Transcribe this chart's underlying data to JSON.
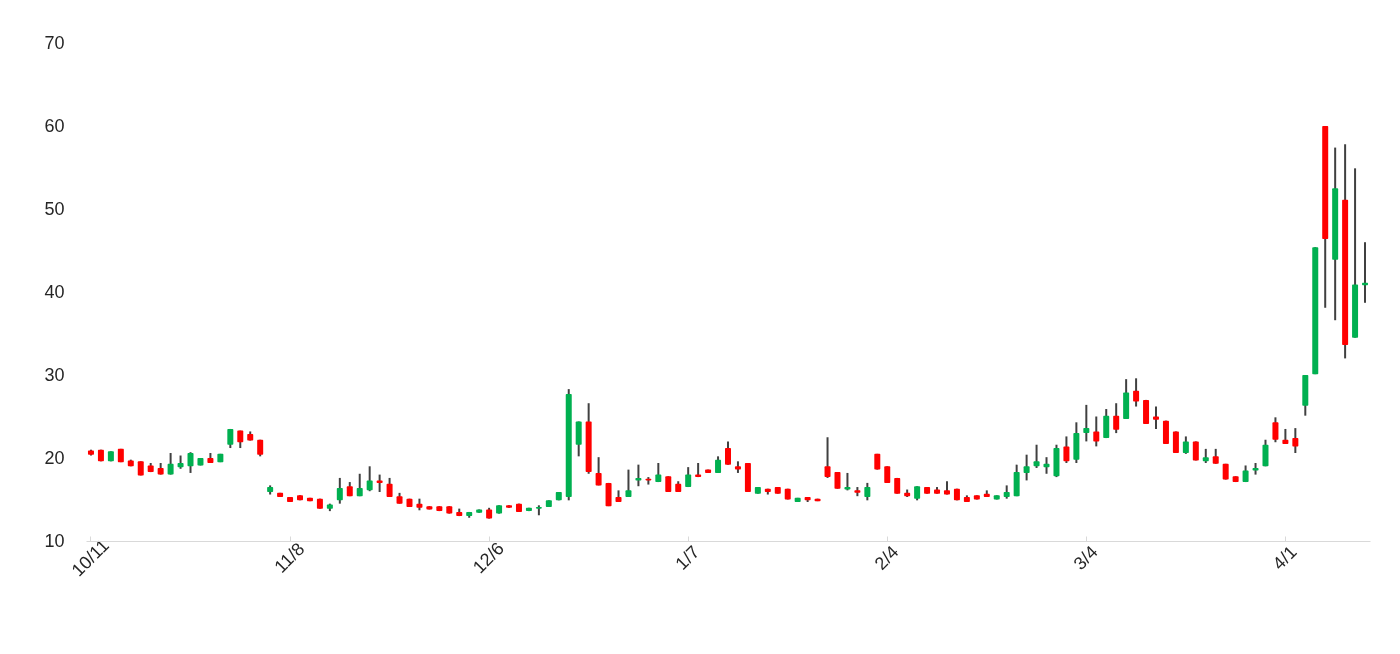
{
  "chart_data": {
    "type": "candlestick",
    "categories": [
      "10/11",
      null,
      null,
      null,
      null,
      null,
      null,
      null,
      null,
      null,
      null,
      null,
      null,
      null,
      null,
      null,
      null,
      null,
      null,
      null,
      "11/8",
      null,
      null,
      null,
      null,
      null,
      null,
      null,
      null,
      null,
      null,
      null,
      null,
      null,
      null,
      null,
      null,
      null,
      null,
      null,
      "12/6",
      null,
      null,
      null,
      null,
      null,
      null,
      null,
      null,
      null,
      null,
      null,
      null,
      null,
      null,
      null,
      null,
      null,
      null,
      null,
      "1/7",
      null,
      null,
      null,
      null,
      null,
      null,
      null,
      null,
      null,
      null,
      null,
      null,
      null,
      null,
      null,
      null,
      null,
      null,
      null,
      "2/4",
      null,
      null,
      null,
      null,
      null,
      null,
      null,
      null,
      null,
      null,
      null,
      null,
      null,
      null,
      null,
      null,
      null,
      null,
      null,
      "3/4",
      null,
      null,
      null,
      null,
      null,
      null,
      null,
      null,
      null,
      null,
      null,
      null,
      null,
      null,
      null,
      null,
      null,
      null,
      null,
      "4/1",
      null,
      null,
      null,
      null,
      null,
      null,
      null,
      null
    ],
    "ohlc": [
      [
        20.9,
        21.0,
        20.3,
        20.4
      ],
      [
        21.0,
        21.0,
        19.6,
        19.6
      ],
      [
        19.6,
        20.8,
        19.6,
        20.8
      ],
      [
        21.1,
        21.1,
        19.5,
        19.5
      ],
      [
        19.7,
        19.8,
        19.0,
        19.0
      ],
      [
        19.6,
        19.6,
        17.9,
        17.9
      ],
      [
        19.1,
        19.4,
        18.3,
        18.3
      ],
      [
        18.8,
        19.4,
        18.0,
        18.0
      ],
      [
        18.0,
        20.6,
        18.0,
        19.3
      ],
      [
        18.9,
        20.3,
        18.7,
        19.4
      ],
      [
        19.0,
        20.7,
        18.2,
        20.6
      ],
      [
        19.1,
        20.0,
        19.1,
        20.0
      ],
      [
        20.0,
        20.6,
        19.4,
        19.4
      ],
      [
        19.5,
        20.5,
        19.5,
        20.5
      ],
      [
        21.6,
        23.5,
        21.2,
        23.5
      ],
      [
        23.3,
        23.3,
        21.2,
        21.9
      ],
      [
        22.9,
        23.2,
        22.1,
        22.1
      ],
      [
        22.2,
        22.2,
        20.2,
        20.4
      ],
      [
        15.9,
        16.7,
        15.6,
        16.5
      ],
      [
        15.8,
        15.8,
        15.3,
        15.3
      ],
      [
        15.3,
        15.3,
        14.7,
        14.7
      ],
      [
        15.5,
        15.5,
        14.9,
        14.9
      ],
      [
        15.2,
        15.2,
        14.8,
        14.8
      ],
      [
        15.1,
        15.1,
        13.9,
        13.9
      ],
      [
        13.9,
        14.5,
        13.6,
        14.4
      ],
      [
        14.9,
        17.6,
        14.5,
        16.4
      ],
      [
        16.6,
        17.1,
        15.4,
        15.4
      ],
      [
        15.4,
        18.1,
        15.4,
        16.4
      ],
      [
        16.1,
        19.0,
        16.0,
        17.3
      ],
      [
        17.3,
        18.0,
        15.9,
        17.0
      ],
      [
        16.9,
        17.6,
        15.3,
        15.3
      ],
      [
        15.4,
        15.8,
        14.5,
        14.5
      ],
      [
        15.1,
        15.1,
        14.1,
        14.1
      ],
      [
        14.5,
        15.1,
        13.7,
        14.0
      ],
      [
        14.2,
        14.2,
        13.8,
        13.8
      ],
      [
        14.2,
        14.2,
        13.6,
        13.6
      ],
      [
        14.2,
        14.2,
        13.3,
        13.3
      ],
      [
        13.5,
        13.9,
        13.0,
        13.0
      ],
      [
        13.0,
        13.5,
        12.8,
        13.5
      ],
      [
        13.4,
        13.8,
        13.4,
        13.8
      ],
      [
        13.8,
        14.0,
        12.7,
        12.7
      ],
      [
        13.3,
        14.3,
        13.3,
        14.3
      ],
      [
        14.3,
        14.3,
        14.0,
        14.0
      ],
      [
        14.5,
        14.5,
        13.5,
        13.5
      ],
      [
        13.6,
        14.0,
        13.6,
        14.0
      ],
      [
        13.9,
        14.3,
        13.1,
        14.1
      ],
      [
        14.1,
        14.9,
        14.1,
        14.9
      ],
      [
        14.9,
        15.9,
        14.9,
        15.9
      ],
      [
        15.3,
        28.3,
        14.9,
        27.7
      ],
      [
        21.6,
        24.4,
        20.2,
        24.4
      ],
      [
        24.4,
        26.6,
        18.1,
        18.3
      ],
      [
        18.2,
        20.1,
        16.7,
        16.7
      ],
      [
        17.0,
        17.0,
        14.2,
        14.2
      ],
      [
        15.3,
        16.1,
        14.7,
        14.7
      ],
      [
        15.3,
        18.6,
        15.3,
        16.1
      ],
      [
        17.3,
        19.2,
        16.6,
        17.6
      ],
      [
        17.5,
        17.7,
        16.8,
        17.3
      ],
      [
        17.1,
        19.4,
        17.1,
        18.0
      ],
      [
        17.8,
        17.8,
        15.9,
        15.9
      ],
      [
        16.9,
        17.2,
        15.9,
        15.9
      ],
      [
        16.5,
        18.9,
        16.5,
        18.0
      ],
      [
        18.0,
        19.4,
        17.7,
        17.7
      ],
      [
        18.6,
        18.6,
        18.2,
        18.2
      ],
      [
        18.2,
        20.2,
        18.2,
        19.8
      ],
      [
        21.2,
        22.0,
        19.2,
        19.2
      ],
      [
        19.0,
        19.6,
        18.2,
        18.6
      ],
      [
        19.4,
        19.4,
        15.9,
        15.9
      ],
      [
        15.7,
        16.5,
        15.7,
        16.5
      ],
      [
        16.3,
        16.3,
        15.6,
        15.9
      ],
      [
        16.5,
        16.5,
        15.7,
        15.7
      ],
      [
        16.3,
        16.3,
        15.0,
        15.0
      ],
      [
        14.7,
        15.2,
        14.7,
        15.2
      ],
      [
        15.3,
        15.3,
        14.7,
        14.9
      ],
      [
        15.1,
        15.1,
        14.8,
        14.8
      ],
      [
        19.0,
        22.5,
        17.6,
        17.7
      ],
      [
        18.3,
        18.3,
        16.3,
        16.3
      ],
      [
        16.2,
        18.2,
        16.1,
        16.5
      ],
      [
        16.1,
        16.5,
        15.4,
        15.8
      ],
      [
        15.3,
        17.0,
        14.9,
        16.5
      ],
      [
        20.5,
        20.5,
        18.6,
        18.6
      ],
      [
        19.0,
        19.0,
        17.0,
        17.0
      ],
      [
        17.6,
        17.6,
        15.7,
        15.7
      ],
      [
        15.8,
        16.2,
        15.3,
        15.4
      ],
      [
        15.1,
        16.6,
        14.9,
        16.6
      ],
      [
        16.5,
        16.5,
        15.7,
        15.7
      ],
      [
        16.2,
        16.5,
        15.7,
        15.7
      ],
      [
        16.1,
        17.2,
        15.6,
        15.6
      ],
      [
        16.3,
        16.3,
        14.9,
        14.9
      ],
      [
        15.3,
        15.5,
        14.7,
        14.7
      ],
      [
        15.5,
        15.5,
        15.0,
        15.0
      ],
      [
        15.7,
        16.1,
        15.3,
        15.3
      ],
      [
        15.0,
        15.5,
        15.0,
        15.5
      ],
      [
        15.3,
        16.7,
        15.1,
        15.9
      ],
      [
        15.4,
        19.2,
        15.4,
        18.3
      ],
      [
        18.2,
        20.4,
        17.3,
        19.0
      ],
      [
        19.0,
        21.6,
        18.8,
        19.6
      ],
      [
        18.9,
        20.1,
        18.1,
        19.3
      ],
      [
        17.8,
        21.6,
        17.7,
        21.2
      ],
      [
        21.4,
        22.6,
        19.4,
        19.6
      ],
      [
        19.8,
        24.3,
        19.4,
        23.0
      ],
      [
        23.0,
        26.4,
        22.0,
        23.6
      ],
      [
        23.2,
        25.0,
        21.4,
        22.0
      ],
      [
        22.4,
        25.9,
        22.4,
        25.1
      ],
      [
        25.1,
        26.6,
        23.0,
        23.4
      ],
      [
        24.7,
        29.5,
        24.7,
        27.9
      ],
      [
        28.1,
        29.6,
        26.2,
        26.8
      ],
      [
        27.0,
        27.0,
        24.1,
        24.1
      ],
      [
        25.0,
        26.2,
        23.5,
        24.6
      ],
      [
        24.5,
        24.5,
        21.7,
        21.7
      ],
      [
        23.2,
        23.2,
        20.6,
        20.6
      ],
      [
        20.6,
        22.6,
        20.5,
        22.0
      ],
      [
        22.0,
        22.0,
        19.7,
        19.7
      ],
      [
        19.6,
        21.1,
        19.4,
        20.1
      ],
      [
        20.2,
        21.1,
        19.3,
        19.3
      ],
      [
        19.3,
        19.3,
        17.4,
        17.4
      ],
      [
        17.8,
        17.8,
        17.1,
        17.1
      ],
      [
        17.1,
        19.1,
        17.1,
        18.5
      ],
      [
        18.5,
        19.4,
        18.0,
        18.8
      ],
      [
        19.0,
        22.2,
        19.0,
        21.6
      ],
      [
        24.3,
        24.9,
        21.9,
        22.2
      ],
      [
        22.2,
        23.5,
        21.7,
        21.7
      ],
      [
        22.4,
        23.6,
        20.6,
        21.4
      ],
      [
        26.3,
        30.0,
        25.1,
        30.0
      ],
      [
        30.1,
        45.4,
        30.1,
        45.4
      ],
      [
        60.0,
        60.0,
        38.1,
        46.4
      ],
      [
        43.9,
        57.4,
        36.6,
        52.5
      ],
      [
        51.1,
        57.8,
        32.0,
        33.6
      ],
      [
        34.5,
        54.9,
        34.5,
        40.9
      ],
      [
        40.8,
        46.0,
        38.7,
        41.1
      ]
    ],
    "colors": [
      "#ff0000",
      "#ff0000",
      "#00b050",
      "#ff0000",
      "#ff0000",
      "#ff0000",
      "#ff0000",
      "#ff0000",
      "#00b050",
      "#00b050",
      "#00b050",
      "#00b050",
      "#ff0000",
      "#00b050",
      "#00b050",
      "#ff0000",
      "#ff0000",
      "#ff0000",
      "#00b050",
      "#ff0000",
      "#ff0000",
      "#ff0000",
      "#ff0000",
      "#ff0000",
      "#00b050",
      "#00b050",
      "#ff0000",
      "#00b050",
      "#00b050",
      "#ff0000",
      "#ff0000",
      "#ff0000",
      "#ff0000",
      "#ff0000",
      "#ff0000",
      "#ff0000",
      "#ff0000",
      "#ff0000",
      "#00b050",
      "#00b050",
      "#ff0000",
      "#00b050",
      "#ff0000",
      "#ff0000",
      "#00b050",
      "#00b050",
      "#00b050",
      "#00b050",
      "#00b050",
      "#00b050",
      "#ff0000",
      "#ff0000",
      "#ff0000",
      "#ff0000",
      "#00b050",
      "#00b050",
      "#ff0000",
      "#00b050",
      "#ff0000",
      "#ff0000",
      "#00b050",
      "#ff0000",
      "#ff0000",
      "#00b050",
      "#ff0000",
      "#ff0000",
      "#ff0000",
      "#00b050",
      "#ff0000",
      "#ff0000",
      "#ff0000",
      "#00b050",
      "#ff0000",
      "#ff0000",
      "#ff0000",
      "#ff0000",
      "#00b050",
      "#ff0000",
      "#00b050",
      "#ff0000",
      "#ff0000",
      "#ff0000",
      "#ff0000",
      "#00b050",
      "#ff0000",
      "#ff0000",
      "#ff0000",
      "#ff0000",
      "#ff0000",
      "#ff0000",
      "#ff0000",
      "#00b050",
      "#00b050",
      "#00b050",
      "#00b050",
      "#00b050",
      "#00b050",
      "#00b050",
      "#ff0000",
      "#00b050",
      "#00b050",
      "#ff0000",
      "#00b050",
      "#ff0000",
      "#00b050",
      "#ff0000",
      "#ff0000",
      "#ff0000",
      "#ff0000",
      "#ff0000",
      "#00b050",
      "#ff0000",
      "#00b050",
      "#ff0000",
      "#ff0000",
      "#ff0000",
      "#00b050",
      "#00b050",
      "#00b050",
      "#ff0000",
      "#ff0000",
      "#ff0000",
      "#00b050",
      "#00b050",
      "#ff0000",
      "#00b050",
      "#ff0000",
      "#00b050",
      "#00b050"
    ],
    "ylim": [
      10,
      70
    ],
    "yticks": [
      10,
      20,
      30,
      40,
      50,
      60,
      70
    ]
  }
}
